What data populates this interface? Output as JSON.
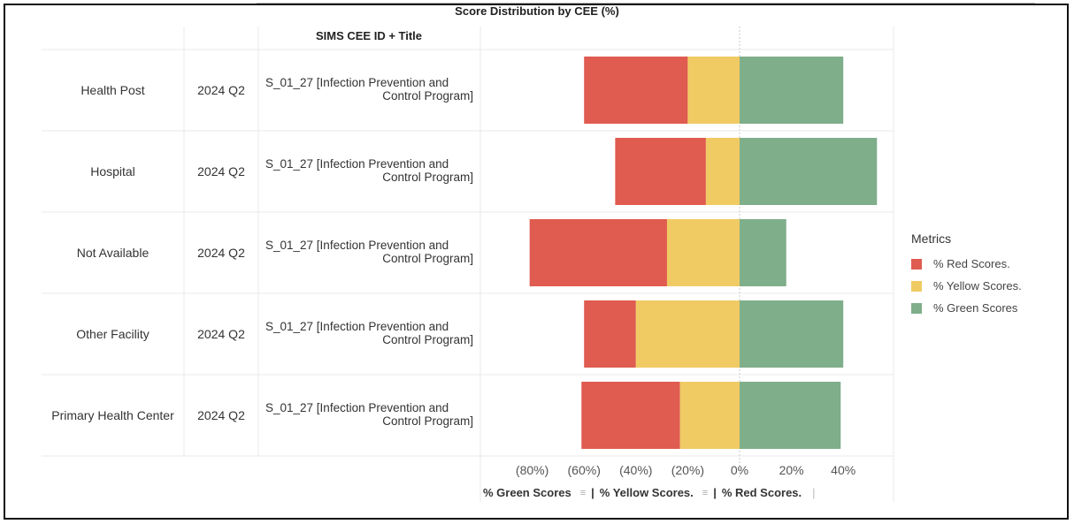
{
  "title": "Score Distribution by CEE (%)",
  "table_header": "SIMS CEE ID + Title",
  "rows": [
    {
      "facility": "Health Post",
      "period": "2024 Q2",
      "cee_line1": "S_01_27 [Infection Prevention and",
      "cee_line2": "Control Program]"
    },
    {
      "facility": "Hospital",
      "period": "2024 Q2",
      "cee_line1": "S_01_27 [Infection Prevention and",
      "cee_line2": "Control Program]"
    },
    {
      "facility": "Not Available",
      "period": "2024 Q2",
      "cee_line1": "S_01_27 [Infection Prevention and",
      "cee_line2": "Control Program]"
    },
    {
      "facility": "Other Facility",
      "period": "2024 Q2",
      "cee_line1": "S_01_27 [Infection Prevention and",
      "cee_line2": "Control Program]"
    },
    {
      "facility": "Primary Health Center",
      "period": "2024 Q2",
      "cee_line1": "S_01_27 [Infection Prevention and",
      "cee_line2": "Control Program]"
    }
  ],
  "legend": {
    "title": "Metrics",
    "items": [
      {
        "label": "% Red Scores.",
        "color": "#e05b50"
      },
      {
        "label": "% Yellow Scores.",
        "color": "#f0cb64"
      },
      {
        "label": "% Green Scores",
        "color": "#7fae8a"
      }
    ]
  },
  "axis_footer": {
    "green": "% Green Scores",
    "yellow": "% Yellow Scores.",
    "red": "% Red Scores.",
    "separator": "|"
  },
  "chart_data": {
    "type": "bar",
    "orientation": "horizontal-diverging",
    "title": "Score Distribution by CEE (%)",
    "categories": [
      "Health Post",
      "Hospital",
      "Not Available",
      "Other Facility",
      "Primary Health Center"
    ],
    "series": [
      {
        "name": "% Red Scores.",
        "color": "#e05b50",
        "start": [
          -60,
          -48,
          -81,
          -60,
          -61
        ],
        "end": [
          -20,
          -13,
          -28,
          -40,
          -23
        ]
      },
      {
        "name": "% Yellow Scores.",
        "color": "#f0cb64",
        "start": [
          -20,
          -13,
          -28,
          -40,
          -23
        ],
        "end": [
          0,
          0,
          0,
          0,
          0
        ]
      },
      {
        "name": "% Green Scores",
        "color": "#7fae8a",
        "start": [
          0,
          0,
          0,
          0,
          0
        ],
        "end": [
          40,
          53,
          18,
          40,
          39
        ]
      }
    ],
    "xlim": [
      -84,
      54
    ],
    "xticks": [
      -80,
      -60,
      -40,
      -20,
      0,
      20,
      40
    ],
    "xtick_labels": [
      "(80%)",
      "(60%)",
      "(40%)",
      "(20%)",
      "0%",
      "20%",
      "40%"
    ],
    "legend_position": "right",
    "grid": false
  }
}
